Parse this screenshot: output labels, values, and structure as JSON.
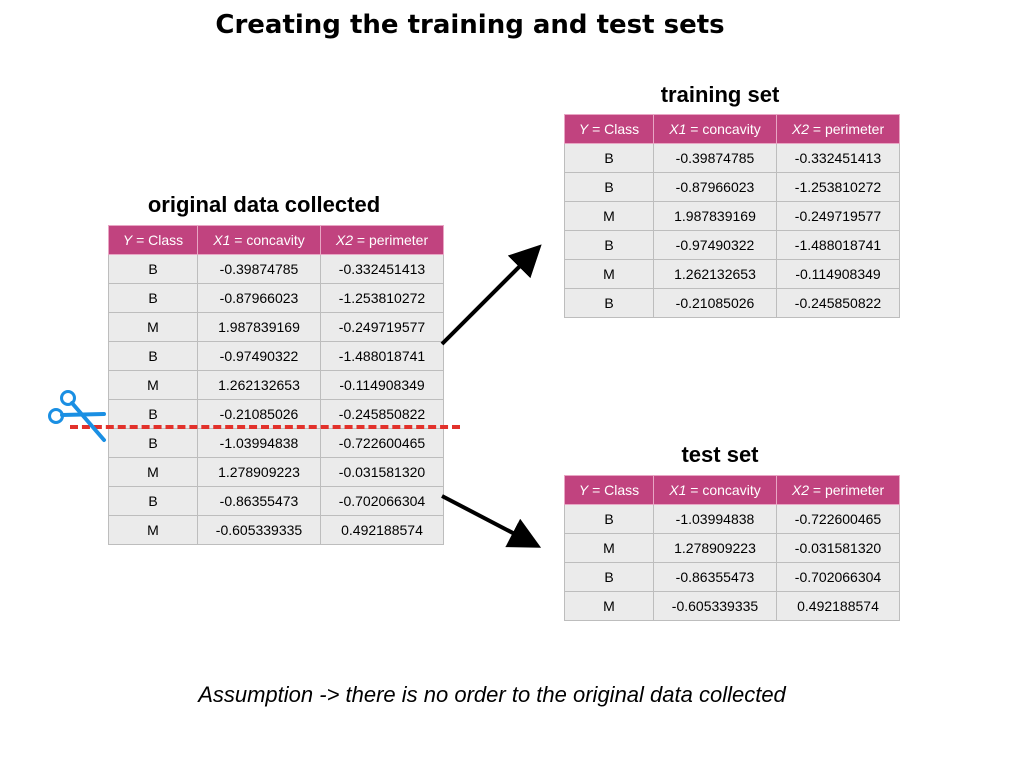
{
  "title": "Creating the training and test sets",
  "columns": {
    "y_var": "Y",
    "y_rest": " = Class",
    "x1_var": "X1",
    "x1_rest": " = concavity",
    "x2_var": "X2",
    "x2_rest": " = perimeter"
  },
  "original": {
    "heading": "original data collected",
    "rows": [
      [
        "B",
        "-0.39874785",
        "-0.332451413"
      ],
      [
        "B",
        "-0.87966023",
        "-1.253810272"
      ],
      [
        "M",
        "1.987839169",
        "-0.249719577"
      ],
      [
        "B",
        "-0.97490322",
        "-1.488018741"
      ],
      [
        "M",
        "1.262132653",
        "-0.114908349"
      ],
      [
        "B",
        "-0.21085026",
        "-0.245850822"
      ],
      [
        "B",
        "-1.03994838",
        "-0.722600465"
      ],
      [
        "M",
        "1.278909223",
        "-0.031581320"
      ],
      [
        "B",
        "-0.86355473",
        "-0.702066304"
      ],
      [
        "M",
        "-0.605339335",
        "0.492188574"
      ]
    ]
  },
  "training": {
    "heading": "training set",
    "rows": [
      [
        "B",
        "-0.39874785",
        "-0.332451413"
      ],
      [
        "B",
        "-0.87966023",
        "-1.253810272"
      ],
      [
        "M",
        "1.987839169",
        "-0.249719577"
      ],
      [
        "B",
        "-0.97490322",
        "-1.488018741"
      ],
      [
        "M",
        "1.262132653",
        "-0.114908349"
      ],
      [
        "B",
        "-0.21085026",
        "-0.245850822"
      ]
    ]
  },
  "test": {
    "heading": "test set",
    "rows": [
      [
        "B",
        "-1.03994838",
        "-0.722600465"
      ],
      [
        "M",
        "1.278909223",
        "-0.031581320"
      ],
      [
        "B",
        "-0.86355473",
        "-0.702066304"
      ],
      [
        "M",
        "-0.605339335",
        "0.492188574"
      ]
    ]
  },
  "footnote": "Assumption -> there is no order to the original data collected",
  "colors": {
    "header": "#c1437f",
    "cell": "#ebebeb",
    "cutline": "#e2312b",
    "scissors": "#1a8fe3"
  },
  "icons": {
    "scissors": "scissors-icon"
  }
}
